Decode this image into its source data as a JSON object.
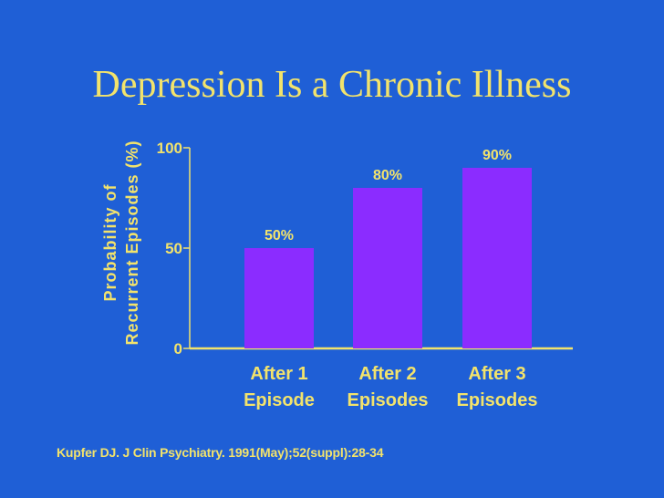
{
  "slide": {
    "title": "Depression Is a Chronic Illness",
    "citation": "Kupfer DJ. J Clin Psychiatry. 1991(May);52(suppl):28-34"
  },
  "colors": {
    "background": "#1f5fd6",
    "text": "#f2e36c",
    "bar": "#8b2cff",
    "axis": "#f2e36c"
  },
  "chart_data": {
    "type": "bar",
    "title": "Depression Is a Chronic Illness",
    "xlabel": "",
    "ylabel_lines": [
      "Probability of",
      "Recurrent Episodes (%)"
    ],
    "categories": [
      [
        "After 1",
        "Episode"
      ],
      [
        "After 2",
        "Episodes"
      ],
      [
        "After 3",
        "Episodes"
      ]
    ],
    "values": [
      50,
      80,
      90
    ],
    "data_labels": [
      "50%",
      "80%",
      "90%"
    ],
    "ylim": [
      0,
      100
    ],
    "yticks": [
      0,
      50,
      100
    ],
    "grid": false
  }
}
